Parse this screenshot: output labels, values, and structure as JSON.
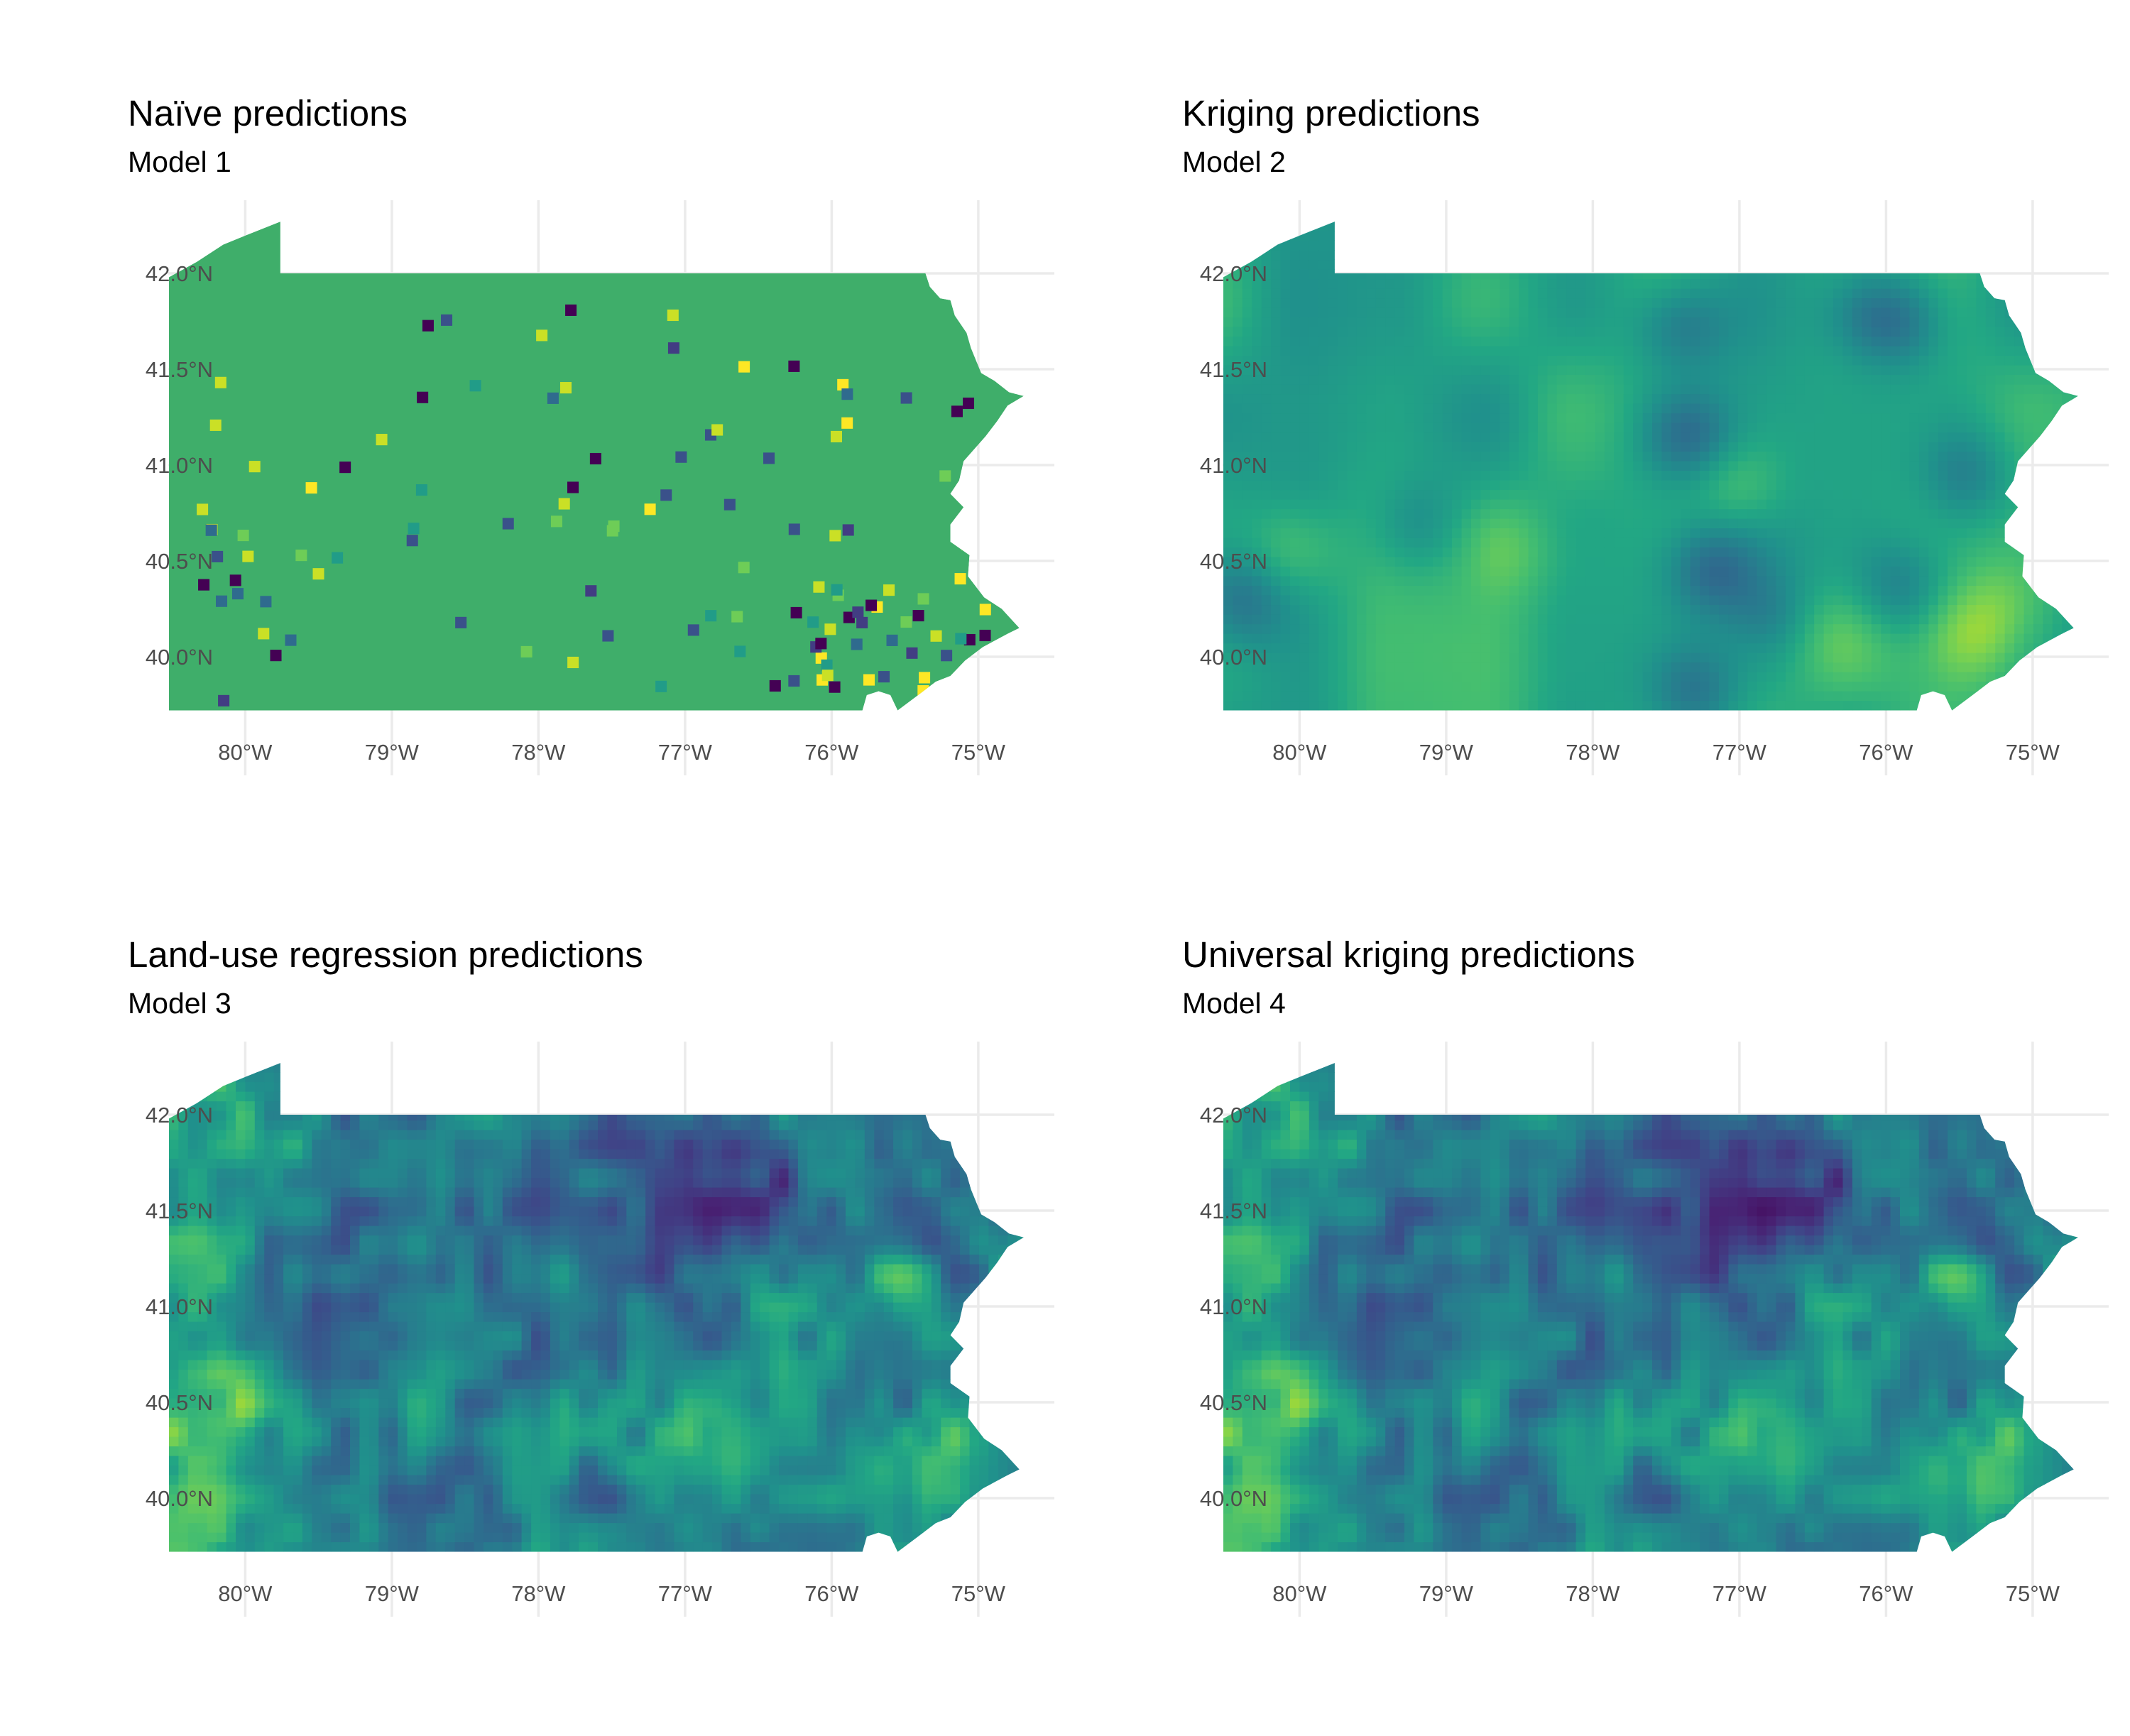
{
  "panels": [
    {
      "title": "Naïve predictions",
      "subtitle": "Model 1",
      "style": "naive"
    },
    {
      "title": "Kriging predictions",
      "subtitle": "Model 2",
      "style": "kriging"
    },
    {
      "title": "Land-use regression predictions",
      "subtitle": "Model 3",
      "style": "lur"
    },
    {
      "title": "Universal kriging predictions",
      "subtitle": "Model 4",
      "style": "uk"
    }
  ],
  "axes": {
    "x_ticks": [
      "80°W",
      "79°W",
      "78°W",
      "77°W",
      "76°W",
      "75°W"
    ],
    "x_values": [
      -80,
      -79,
      -78,
      -77,
      -76,
      -75
    ],
    "y_ticks": [
      "42.0°N",
      "41.5°N",
      "41.0°N",
      "40.5°N",
      "40.0°N"
    ],
    "y_values": [
      42.0,
      41.5,
      41.0,
      40.5,
      40.0
    ],
    "lon_range": [
      -80.52,
      -74.69
    ],
    "lat_range": [
      39.72,
      42.27
    ]
  },
  "colors": {
    "grid": "#ebebeb",
    "viridis_low": "#440154",
    "viridis_mid_blue": "#31688e",
    "viridis_mid": "#21908c",
    "viridis_green": "#5ec962",
    "viridis_high": "#fde725",
    "naive_base": "#3fae6a"
  }
}
